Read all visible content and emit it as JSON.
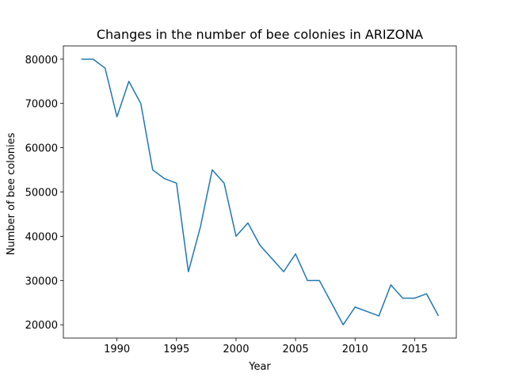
{
  "chart_data": {
    "type": "line",
    "title": "Changes in the number of bee colonies in ARIZONA",
    "xlabel": "Year",
    "ylabel": "Number of bee colonies",
    "xlim": [
      1985.5,
      2018.5
    ],
    "ylim": [
      17000,
      83000
    ],
    "xticks": [
      1990,
      1995,
      2000,
      2005,
      2010,
      2015
    ],
    "xtick_labels": [
      "1990",
      "1995",
      "2000",
      "2005",
      "2010",
      "2015"
    ],
    "yticks": [
      20000,
      30000,
      40000,
      50000,
      60000,
      70000,
      80000
    ],
    "ytick_labels": [
      "20000",
      "30000",
      "40000",
      "50000",
      "60000",
      "70000",
      "80000"
    ],
    "grid": false,
    "series": [
      {
        "color": "#1f77b4",
        "x": [
          1987,
          1988,
          1989,
          1990,
          1991,
          1992,
          1993,
          1994,
          1995,
          1996,
          1997,
          1998,
          1999,
          2000,
          2001,
          2002,
          2003,
          2004,
          2005,
          2006,
          2007,
          2008,
          2009,
          2010,
          2011,
          2012,
          2013,
          2014,
          2015,
          2016,
          2017
        ],
        "y": [
          80000,
          80000,
          78000,
          67000,
          75000,
          70000,
          55000,
          53000,
          52000,
          32000,
          42000,
          55000,
          52000,
          40000,
          43000,
          38000,
          35000,
          32000,
          36000,
          30000,
          30000,
          25000,
          20000,
          24000,
          23000,
          22000,
          29000,
          26000,
          26000,
          27000,
          22000
        ]
      }
    ]
  }
}
